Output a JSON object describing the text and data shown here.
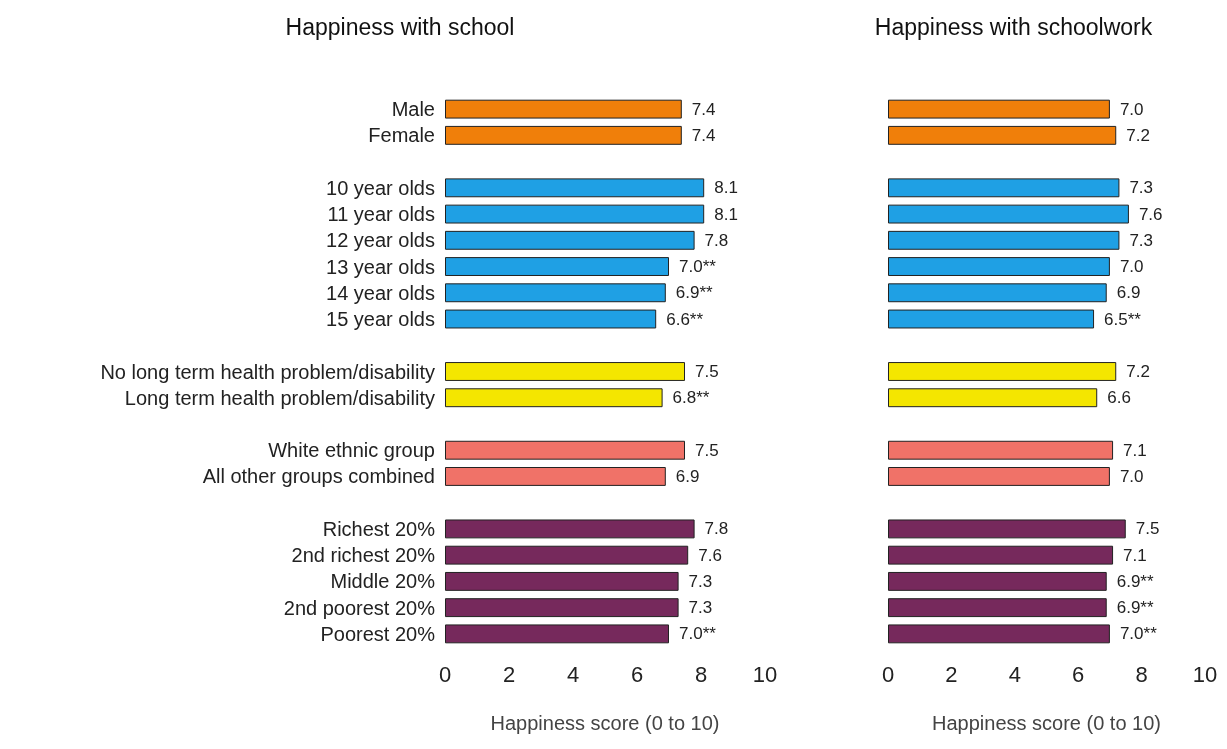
{
  "chart_data": [
    {
      "type": "bar",
      "orientation": "horizontal",
      "title": "Happiness with school",
      "xlabel": "Happiness score (0 to 10)",
      "categories": [
        "Male",
        "Female",
        null,
        "10 year olds",
        "11 year olds",
        "12 year olds",
        "13 year olds",
        "14 year olds",
        "15 year olds",
        null,
        "No long term health problem/disability",
        "Long term health problem/disability",
        null,
        "White ethnic group",
        "All other groups combined",
        null,
        "Richest 20%",
        "2nd richest 20%",
        "Middle 20%",
        "2nd poorest 20%",
        "Poorest 20%"
      ],
      "values": [
        7.4,
        7.4,
        null,
        8.1,
        8.1,
        7.8,
        7.0,
        6.9,
        6.6,
        null,
        7.5,
        6.8,
        null,
        7.5,
        6.9,
        null,
        7.8,
        7.6,
        7.3,
        7.3,
        7.0
      ],
      "value_labels": [
        "7.4",
        "7.4",
        null,
        "8.1",
        "8.1",
        "7.8",
        "7.0**",
        "6.9**",
        "6.6**",
        null,
        "7.5",
        "6.8**",
        null,
        "7.5",
        "6.9",
        null,
        "7.8",
        "7.6",
        "7.3",
        "7.3",
        "7.0**"
      ],
      "colors": [
        "#f07f0a",
        "#f07f0a",
        null,
        "#1fa0e4",
        "#1fa0e4",
        "#1fa0e4",
        "#1fa0e4",
        "#1fa0e4",
        "#1fa0e4",
        null,
        "#f4e600",
        "#f4e600",
        null,
        "#f07268",
        "#f07268",
        null,
        "#76295c",
        "#76295c",
        "#76295c",
        "#76295c",
        "#76295c"
      ],
      "xlim": [
        0,
        10
      ],
      "xticks": [
        0,
        2,
        4,
        6,
        8,
        10
      ],
      "grid": false
    },
    {
      "type": "bar",
      "orientation": "horizontal",
      "title": "Happiness with schoolwork",
      "xlabel": "Happiness score (0 to 10)",
      "tick_labels": "x",
      "categories": [
        null,
        null,
        null,
        null,
        null,
        null,
        null,
        null,
        null,
        null,
        null,
        null,
        null,
        null,
        null,
        null,
        null,
        null,
        null,
        null,
        null
      ],
      "values": [
        7.0,
        7.2,
        null,
        7.3,
        7.6,
        7.3,
        7.0,
        6.9,
        6.5,
        null,
        7.2,
        6.6,
        null,
        7.1,
        7.0,
        null,
        7.5,
        7.1,
        6.9,
        6.9,
        7.0
      ],
      "value_labels": [
        "7.0",
        "7.2",
        null,
        "7.3",
        "7.6",
        "7.3",
        "7.0",
        "6.9",
        "6.5**",
        null,
        "7.2",
        "6.6",
        null,
        "7.1",
        "7.0",
        null,
        "7.5",
        "7.1",
        "6.9**",
        "6.9**",
        "7.0**"
      ],
      "colors": [
        "#f07f0a",
        "#f07f0a",
        null,
        "#1fa0e4",
        "#1fa0e4",
        "#1fa0e4",
        "#1fa0e4",
        "#1fa0e4",
        "#1fa0e4",
        null,
        "#f4e600",
        "#f4e600",
        null,
        "#f07268",
        "#f07268",
        null,
        "#76295c",
        "#76295c",
        "#76295c",
        "#76295c",
        "#76295c"
      ],
      "xlim": [
        0,
        10
      ],
      "xticks": [
        0,
        2,
        4,
        6,
        8,
        10
      ],
      "grid": false
    }
  ]
}
